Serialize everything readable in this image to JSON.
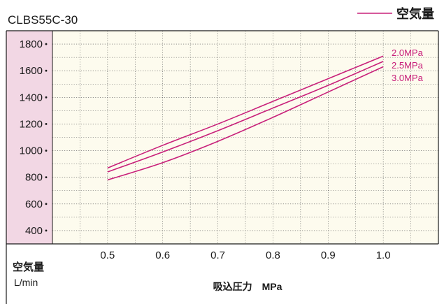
{
  "chart_data": {
    "type": "line",
    "title": "CLBS55C-30",
    "legend": {
      "label": "空気量",
      "placement": "top-right",
      "color": "#c8207a"
    },
    "xlabel": "吸込圧力　MPa",
    "ylabel_line1": "空気量",
    "ylabel_line2": "L/min",
    "xlim": [
      0.4,
      1.1
    ],
    "ylim": [
      300,
      1900
    ],
    "x_ticks": [
      "0.5",
      "0.6",
      "0.7",
      "0.8",
      "0.9",
      "1.0"
    ],
    "x_tick_values": [
      0.5,
      0.6,
      0.7,
      0.8,
      0.9,
      1.0
    ],
    "y_ticks": [
      "1800",
      "1600",
      "1400",
      "1200",
      "1000",
      "800",
      "600",
      "400"
    ],
    "y_tick_values": [
      1800,
      1600,
      1400,
      1200,
      1000,
      800,
      600,
      400
    ],
    "grid": true,
    "line_color": "#c8207a",
    "plot_background": "#fdfbee",
    "axis_panel_color": "#f2d7e4",
    "series": [
      {
        "name": "2.0MPa",
        "x": [
          0.5,
          0.6,
          0.7,
          0.8,
          0.9,
          1.0
        ],
        "y": [
          870,
          1040,
          1200,
          1370,
          1540,
          1710
        ]
      },
      {
        "name": "2.5MPa",
        "x": [
          0.5,
          0.6,
          0.7,
          0.8,
          0.9,
          1.0
        ],
        "y": [
          840,
          990,
          1150,
          1320,
          1490,
          1670
        ]
      },
      {
        "name": "3.0MPa",
        "x": [
          0.5,
          0.6,
          0.7,
          0.8,
          0.9,
          1.0
        ],
        "y": [
          780,
          910,
          1070,
          1250,
          1440,
          1630
        ]
      }
    ]
  }
}
